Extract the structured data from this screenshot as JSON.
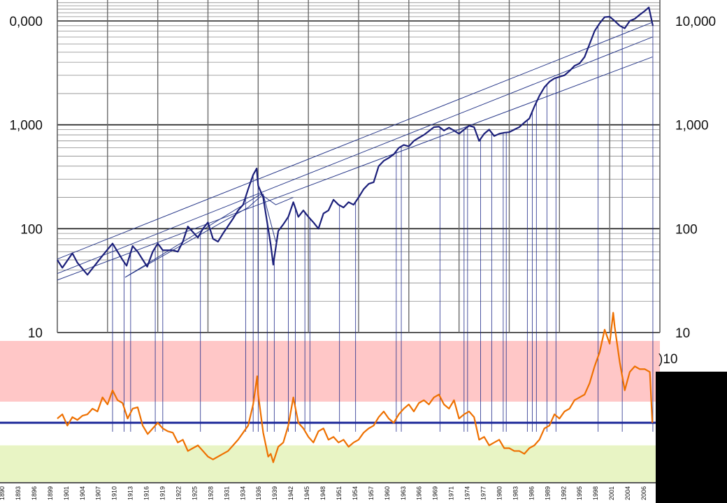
{
  "chart_data": [
    {
      "type": "line",
      "title": "",
      "xlabel": "",
      "ylabel": "",
      "yscale": "log",
      "ylim": [
        10,
        14000
      ],
      "xlim": [
        1890,
        2010
      ],
      "left_tick_labels": [
        "0,000",
        "1,000",
        "100",
        "10"
      ],
      "right_tick_labels": [
        "10,000",
        "1,000",
        "100",
        "10"
      ],
      "grid": true,
      "line_color": "#1b1f7a",
      "channel_color": "#2a3a8a",
      "series": [
        {
          "x": [
            1890,
            1891,
            1893,
            1894,
            1896,
            1899,
            1900,
            1901,
            1903,
            1903.8,
            1905,
            1906,
            1907.9,
            1909,
            1910,
            1911,
            1913,
            1914,
            1915,
            1916,
            1918,
            1919,
            1920,
            1921,
            1922,
            1923,
            1925,
            1926,
            1927,
            1928,
            1929,
            1929.7,
            1930,
            1931,
            1932.5,
            1933,
            1934,
            1935,
            1936,
            1937,
            1938,
            1939,
            1940,
            1941,
            1942,
            1943,
            1944,
            1945,
            1946,
            1947,
            1948,
            1949,
            1950,
            1951,
            1952,
            1953,
            1954,
            1955,
            1956,
            1957,
            1958,
            1959,
            1960,
            1961,
            1962,
            1963,
            1964,
            1965,
            1966,
            1967,
            1968,
            1969,
            1970,
            1971,
            1972,
            1973,
            1974,
            1975,
            1976,
            1977,
            1978,
            1979,
            1980,
            1981,
            1982,
            1983,
            1984,
            1985,
            1986,
            1987,
            1988,
            1989,
            1990,
            1991,
            1992,
            1993,
            1994,
            1995,
            1996,
            1997,
            1998,
            1999,
            2000,
            2001,
            2002,
            2003,
            2004,
            2005,
            2006,
            2007,
            2007.8,
            2008.6
          ],
          "values": [
            50,
            42,
            58,
            47,
            36,
            55,
            63,
            72,
            50,
            44,
            68,
            60,
            43,
            60,
            72,
            62,
            62,
            60,
            75,
            105,
            82,
            100,
            115,
            80,
            75,
            90,
            125,
            150,
            170,
            240,
            330,
            380,
            260,
            200,
            70,
            45,
            95,
            110,
            130,
            180,
            130,
            150,
            130,
            115,
            100,
            140,
            150,
            190,
            170,
            160,
            180,
            170,
            200,
            240,
            270,
            280,
            400,
            450,
            480,
            520,
            600,
            640,
            620,
            700,
            750,
            800,
            870,
            950,
            960,
            880,
            940,
            880,
            820,
            900,
            980,
            950,
            700,
            820,
            900,
            780,
            820,
            840,
            850,
            900,
            950,
            1050,
            1150,
            1500,
            1900,
            2300,
            2600,
            2800,
            2900,
            3000,
            3300,
            3700,
            3900,
            4500,
            6000,
            8000,
            9500,
            10900,
            11000,
            10000,
            9000,
            8500,
            10000,
            10500,
            11500,
            12500,
            13500,
            9000
          ]
        }
      ],
      "channel_lines": [
        {
          "x": [
            1890,
            2008.5
          ],
          "values": [
            51,
            9700
          ]
        },
        {
          "x": [
            1890,
            2008.5
          ],
          "values": [
            37,
            7000
          ]
        },
        {
          "x": [
            1890,
            2008.5
          ],
          "values": [
            32,
            4500
          ]
        },
        {
          "x": [
            1903.5,
            1928,
            1931,
            1933.5
          ],
          "values": [
            34,
            160,
            215,
            75
          ]
        },
        {
          "x": [
            1903.5,
            1930.5,
            1933.5,
            1937
          ],
          "values": [
            34,
            215,
            170,
            200
          ]
        }
      ]
    },
    {
      "type": "line",
      "title": "",
      "xlabel": "",
      "ylabel": "",
      "xlim": [
        1890,
        2010
      ],
      "ylim": [
        0,
        100
      ],
      "line_color": "#ee7000",
      "reference_line": 42,
      "reference_color": "#1f2a9a",
      "band_high": [
        57,
        100
      ],
      "band_low": [
        0,
        26
      ],
      "right_fragment_label": ")10",
      "x_tick_labels": [
        "1890",
        "1893",
        "1896",
        "1899",
        "1901",
        "1904",
        "1907",
        "1910",
        "1913",
        "1916",
        "1919",
        "1922",
        "1925",
        "1928",
        "1931",
        "1934",
        "1936",
        "1939",
        "1942",
        "1945",
        "1948",
        "1951",
        "1954",
        "1957",
        "1960",
        "1963",
        "1966",
        "1969",
        "1971",
        "1974",
        "1977",
        "1980",
        "1983",
        "1986",
        "1989",
        "1992",
        "1995",
        "1998",
        "2001",
        "2004",
        "2006"
      ],
      "series": [
        {
          "x": [
            1890,
            1891,
            1892,
            1893,
            1894,
            1895,
            1896,
            1897,
            1898,
            1899,
            1900,
            1901,
            1902,
            1903,
            1904,
            1905,
            1906,
            1907,
            1908,
            1909,
            1910,
            1911,
            1912,
            1913,
            1914,
            1915,
            1916,
            1917,
            1918,
            1919,
            1920,
            1921,
            1922,
            1923,
            1924,
            1925,
            1926,
            1927,
            1928,
            1929,
            1929.8,
            1930,
            1931,
            1932,
            1932.5,
            1933,
            1934,
            1935,
            1936,
            1937,
            1938,
            1939,
            1940,
            1941,
            1942,
            1943,
            1944,
            1945,
            1946,
            1947,
            1948,
            1949,
            1950,
            1951,
            1952,
            1953,
            1954,
            1955,
            1956,
            1957,
            1958,
            1959,
            1960,
            1961,
            1962,
            1963,
            1964,
            1965,
            1966,
            1967,
            1968,
            1969,
            1970,
            1971,
            1972,
            1973,
            1974,
            1975,
            1976,
            1977,
            1978,
            1979,
            1980,
            1981,
            1982,
            1983,
            1984,
            1985,
            1986,
            1987,
            1988,
            1989,
            1990,
            1991,
            1992,
            1993,
            1994,
            1995,
            1996,
            1997,
            1998,
            1999,
            2000,
            2000.7,
            2001,
            2002,
            2003,
            2004,
            2005,
            2006,
            2007,
            2008,
            2008.5
          ],
          "values": [
            45,
            48,
            40,
            46,
            44,
            47,
            48,
            52,
            50,
            60,
            55,
            65,
            58,
            56,
            45,
            52,
            53,
            40,
            34,
            38,
            42,
            38,
            36,
            35,
            28,
            30,
            22,
            24,
            26,
            22,
            18,
            16,
            18,
            20,
            22,
            26,
            30,
            35,
            40,
            55,
            75,
            62,
            35,
            18,
            20,
            14,
            25,
            28,
            40,
            60,
            42,
            38,
            32,
            28,
            36,
            38,
            30,
            32,
            28,
            30,
            25,
            28,
            30,
            35,
            38,
            40,
            46,
            50,
            45,
            42,
            48,
            52,
            55,
            50,
            56,
            58,
            55,
            60,
            62,
            55,
            52,
            58,
            45,
            48,
            50,
            46,
            30,
            32,
            26,
            28,
            30,
            24,
            24,
            22,
            22,
            20,
            24,
            26,
            30,
            38,
            40,
            48,
            45,
            50,
            52,
            58,
            60,
            62,
            70,
            82,
            92,
            108,
            98,
            120,
            110,
            85,
            65,
            78,
            82,
            80,
            80,
            78,
            42
          ]
        }
      ]
    }
  ]
}
